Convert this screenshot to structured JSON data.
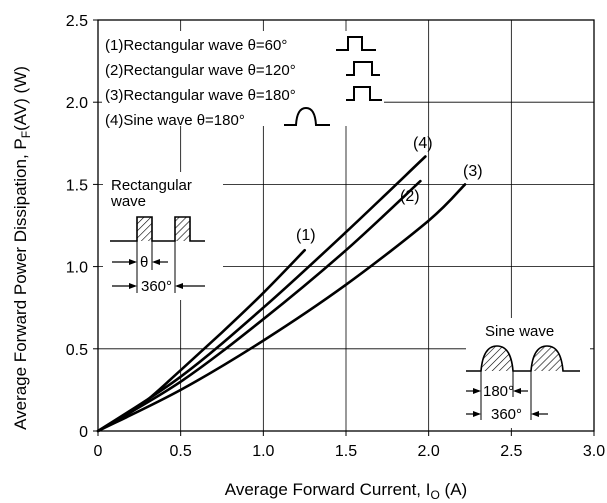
{
  "chart_data": {
    "type": "line",
    "xlabel": "Average Forward Current, I",
    "xlabel_sub": "O",
    "xlabel_unit": " (A)",
    "ylabel": "Average Forward Power Dissipation, P",
    "ylabel_sub": "F",
    "ylabel_unit": "(AV)  (W)",
    "xlim": [
      0,
      3.0
    ],
    "ylim": [
      0,
      2.5
    ],
    "xticks": [
      "0",
      "0.5",
      "1.0",
      "1.5",
      "2.0",
      "2.5",
      "3.0"
    ],
    "xtick_values": [
      0,
      0.5,
      1.0,
      1.5,
      2.0,
      2.5,
      3.0
    ],
    "yticks": [
      "0",
      "0.5",
      "1.0",
      "1.5",
      "2.0",
      "2.5"
    ],
    "ytick_values": [
      0,
      0.5,
      1.0,
      1.5,
      2.0,
      2.5
    ],
    "grid": true,
    "legend": [
      "(1)Rectangular wave θ=60°",
      "(2)Rectangular wave θ=120°",
      "(3)Rectangular wave θ=180°",
      "(4)Sine wave θ=180°"
    ],
    "series": [
      {
        "name": "(1)",
        "x": [
          0,
          0.25,
          0.5,
          0.75,
          1.0,
          1.25
        ],
        "y": [
          0,
          0.15,
          0.37,
          0.6,
          0.84,
          1.1
        ]
      },
      {
        "name": "(2)",
        "x": [
          0,
          0.5,
          1.0,
          1.5,
          1.95
        ],
        "y": [
          0,
          0.3,
          0.68,
          1.1,
          1.52
        ]
      },
      {
        "name": "(3)",
        "x": [
          0,
          0.5,
          1.0,
          1.5,
          2.0,
          2.22
        ],
        "y": [
          0,
          0.25,
          0.55,
          0.89,
          1.28,
          1.5
        ]
      },
      {
        "name": "(4)",
        "x": [
          0,
          0.5,
          1.0,
          1.5,
          1.98
        ],
        "y": [
          0,
          0.33,
          0.75,
          1.21,
          1.67
        ]
      }
    ],
    "series_labels": [
      "(1)",
      "(2)",
      "(3)",
      "(4)"
    ],
    "inset_rect_title_1": "Rectangular",
    "inset_rect_title_2": "wave",
    "inset_theta": "θ",
    "inset_360": "360°",
    "inset_sine_title": "Sine wave",
    "inset_180": "180°",
    "inset_360b": "360°"
  }
}
